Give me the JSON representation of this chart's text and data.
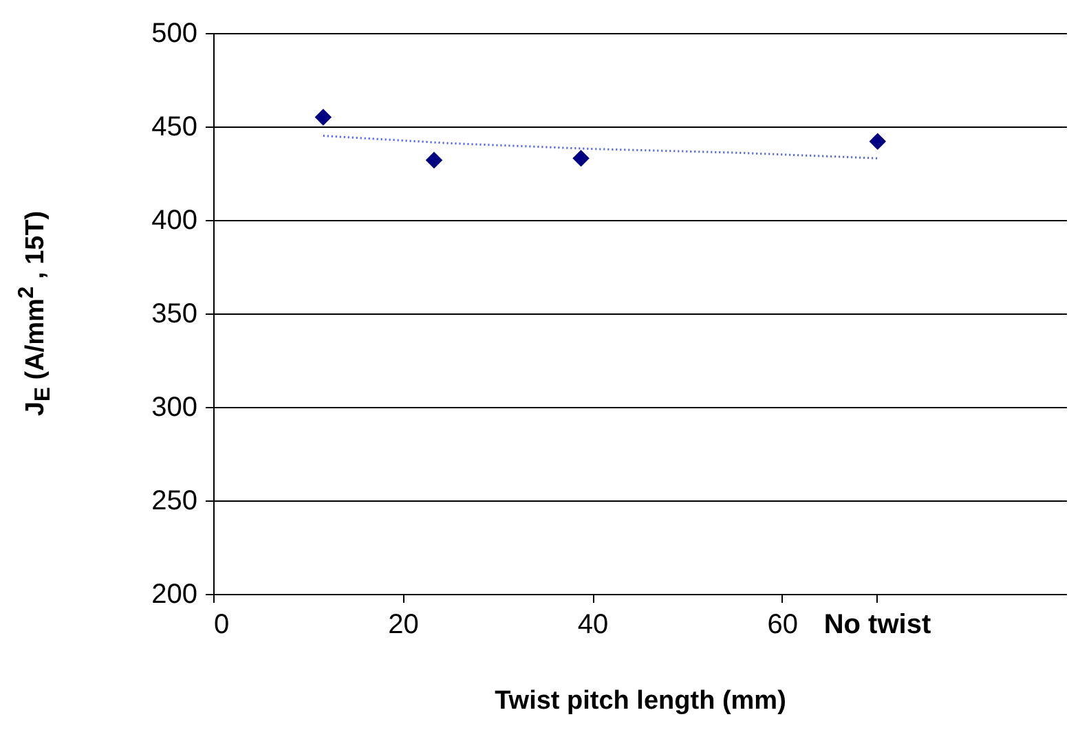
{
  "chart_data": {
    "type": "scatter",
    "xlabel": "Twist pitch length (mm)",
    "ylabel": "J$_{E}$ (A/mm$^{2}$ , 15T)",
    "xlim": [
      0,
      90
    ],
    "xticks": [
      0,
      20,
      40,
      60,
      {
        "value": 70,
        "label": "No twist"
      }
    ],
    "ylim": [
      200,
      500
    ],
    "yticks": [
      200,
      250,
      300,
      350,
      400,
      450,
      500
    ],
    "grid": "y",
    "series": [
      {
        "type": "scatter",
        "color": "#000080",
        "marker": "diamond",
        "x": [
          11.6,
          23.3,
          38.8,
          70.1
        ],
        "values": [
          455,
          432,
          433,
          442
        ]
      },
      {
        "type": "line",
        "color": "#4a5cff",
        "line_style": "dotted",
        "marker": "none",
        "x": [
          11.6,
          25,
          40,
          55,
          70.1
        ],
        "values": [
          445,
          441,
          438,
          436,
          433
        ]
      }
    ]
  }
}
